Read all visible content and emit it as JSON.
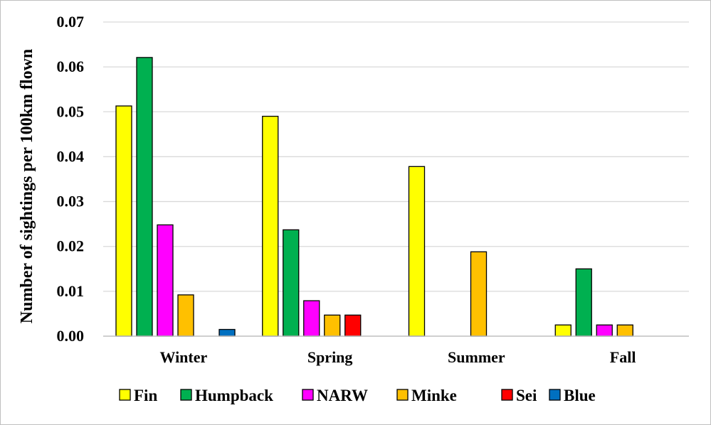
{
  "chart_data": {
    "type": "bar",
    "title": "",
    "xlabel": "",
    "ylabel": "Number of sightings per 100km flown",
    "ylim": [
      0,
      0.07
    ],
    "yticks": [
      "0.00",
      "0.01",
      "0.02",
      "0.03",
      "0.04",
      "0.05",
      "0.06",
      "0.07"
    ],
    "grid": true,
    "legend_position": "bottom",
    "categories": [
      "Winter",
      "Spring",
      "Summer",
      "Fall"
    ],
    "series": [
      {
        "name": "Fin",
        "color": "#ffff00",
        "values": [
          0.0513,
          0.049,
          0.0378,
          0.0025
        ]
      },
      {
        "name": "Humpback",
        "color": "#00b050",
        "values": [
          0.0621,
          0.0237,
          0,
          0.015
        ]
      },
      {
        "name": "NARW",
        "color": "#ff00ff",
        "values": [
          0.0248,
          0.0079,
          0,
          0.0025
        ]
      },
      {
        "name": "Minke",
        "color": "#ffc000",
        "values": [
          0.0092,
          0.0047,
          0.0188,
          0.0025
        ]
      },
      {
        "name": "Sei",
        "color": "#ff0000",
        "values": [
          0,
          0.0047,
          0,
          0
        ]
      },
      {
        "name": "Blue",
        "color": "#0070c0",
        "values": [
          0.0015,
          0,
          0,
          0
        ]
      }
    ]
  }
}
